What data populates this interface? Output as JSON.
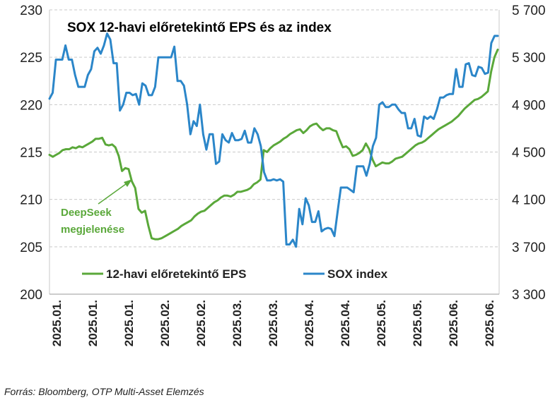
{
  "chart_data": {
    "type": "line",
    "title": "SOX 12-havi előretekintő EPS és az index",
    "x_tick_labels": [
      "2025.01.",
      "2025.01.",
      "2025.01.",
      "2025.02.",
      "2025.02.",
      "2025.03.",
      "2025.03.",
      "2025.04.",
      "2025.04.",
      "2025.05.",
      "2025.05.",
      "2025.06.",
      "2025.06."
    ],
    "y_left": {
      "ylim": [
        200,
        230
      ],
      "ticks": [
        200,
        205,
        210,
        215,
        220,
        225,
        230
      ],
      "tick_labels": [
        "200",
        "205",
        "210",
        "215",
        "220",
        "225",
        "230"
      ]
    },
    "y_right": {
      "ylim": [
        3300,
        5700
      ],
      "ticks": [
        3300,
        3700,
        4100,
        4500,
        4900,
        5300,
        5700
      ],
      "tick_labels": [
        "3 300",
        "3 700",
        "4 100",
        "4 500",
        "4 900",
        "5 300",
        "5 700"
      ]
    },
    "grid": "horizontal dashed",
    "legend_placement": "bottom-left inside plot",
    "series": [
      {
        "name": "12-havi előretekintő EPS",
        "axis": "left",
        "color": "#5aa83a",
        "values": [
          214.7,
          214.5,
          214.7,
          214.9,
          215.2,
          215.3,
          215.3,
          215.5,
          215.4,
          215.6,
          215.5,
          215.7,
          215.9,
          216.1,
          216.4,
          216.4,
          216.5,
          215.8,
          215.7,
          215.8,
          215.5,
          214.6,
          213.0,
          213.3,
          213.2,
          211.9,
          211.2,
          209.0,
          208.6,
          208.8,
          207.2,
          205.9,
          205.8,
          205.8,
          205.9,
          206.1,
          206.3,
          206.5,
          206.7,
          206.9,
          207.2,
          207.4,
          207.6,
          207.8,
          208.2,
          208.5,
          208.7,
          208.8,
          209.1,
          209.4,
          209.7,
          209.9,
          210.2,
          210.4,
          210.4,
          210.3,
          210.5,
          210.8,
          210.8,
          210.9,
          211.0,
          211.2,
          211.6,
          211.8,
          212.1,
          215.2,
          215.0,
          215.4,
          215.7,
          215.9,
          216.1,
          216.4,
          216.6,
          216.9,
          217.1,
          217.3,
          217.4,
          217.0,
          217.3,
          217.7,
          217.9,
          218.0,
          217.6,
          217.3,
          217.5,
          217.5,
          217.3,
          217.2,
          216.3,
          215.5,
          215.6,
          215.3,
          214.6,
          214.7,
          214.9,
          215.2,
          215.9,
          215.3,
          214.2,
          213.5,
          213.7,
          213.9,
          213.8,
          213.8,
          214.0,
          214.3,
          214.4,
          214.5,
          214.8,
          215.1,
          215.4,
          215.7,
          215.9,
          216.0,
          216.2,
          216.5,
          216.8,
          217.1,
          217.4,
          217.6,
          217.8,
          218.0,
          218.2,
          218.5,
          218.8,
          219.2,
          219.6,
          219.9,
          220.2,
          220.5,
          220.6,
          220.8,
          221.1,
          221.4,
          223.5,
          225.0,
          225.8
        ]
      },
      {
        "name": "SOX index",
        "axis": "right",
        "color": "#2b86c9",
        "values": [
          4950,
          5000,
          5280,
          5280,
          5280,
          5400,
          5280,
          5280,
          5150,
          5050,
          5050,
          5050,
          5150,
          5200,
          5350,
          5380,
          5330,
          5400,
          5500,
          5450,
          5250,
          5250,
          4850,
          4900,
          5000,
          5000,
          4980,
          4990,
          4900,
          5080,
          5060,
          4980,
          4980,
          5050,
          5300,
          5300,
          5300,
          5300,
          5300,
          5390,
          5100,
          5100,
          5060,
          4900,
          4650,
          4760,
          4720,
          4900,
          4650,
          4520,
          4650,
          4650,
          4400,
          4420,
          4650,
          4600,
          4580,
          4660,
          4600,
          4600,
          4610,
          4680,
          4580,
          4580,
          4700,
          4650,
          4550,
          4330,
          4260,
          4260,
          4270,
          4260,
          4270,
          4250,
          3720,
          3720,
          3760,
          3700,
          4020,
          3890,
          4110,
          4050,
          3910,
          3910,
          4000,
          3830,
          3850,
          3860,
          3850,
          3790,
          4000,
          4200,
          4200,
          4200,
          4180,
          4160,
          4380,
          4380,
          4380,
          4300,
          4400,
          4550,
          4620,
          4900,
          4920,
          4880,
          4880,
          4900,
          4900,
          4860,
          4830,
          4830,
          4700,
          4700,
          4780,
          4640,
          4630,
          4800,
          4780,
          4800,
          4780,
          4860,
          4960,
          4960,
          4980,
          4990,
          4990,
          5200,
          5050,
          5050,
          5240,
          5250,
          5150,
          5140,
          5220,
          5210,
          5160,
          5170,
          5420,
          5480,
          5480
        ]
      }
    ],
    "annotations": [
      {
        "text_lines": [
          "DeepSeek",
          "megjelenése"
        ],
        "color": "#5aa83a",
        "points_to_index": 22
      }
    ]
  },
  "source_text": "Forrás: Bloomberg, OTP Multi-Asset Elemzés"
}
